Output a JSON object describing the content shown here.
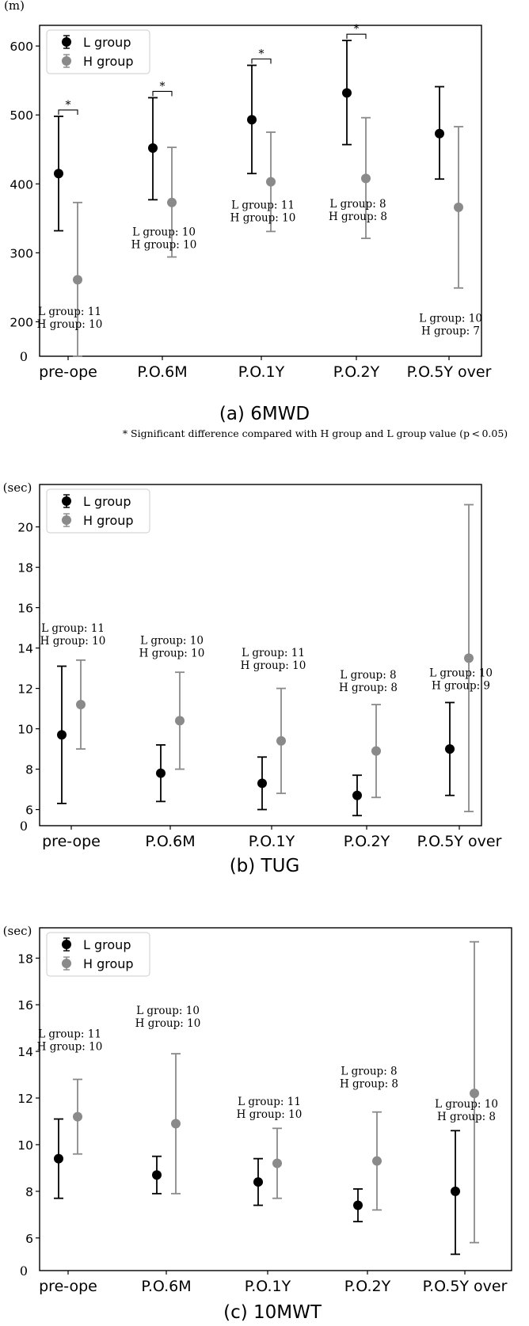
{
  "chart_data": [
    {
      "type": "errorbar",
      "panel": "a",
      "title": "(a) 6MWD",
      "unit_label": "(m)",
      "categories": [
        "pre-ope",
        "P.O.6M",
        "P.O.1Y",
        "P.O.2Y",
        "P.O.5Y over"
      ],
      "ylim": [
        150,
        630
      ],
      "y_ticks": [
        200,
        300,
        400,
        500,
        600
      ],
      "y_zero_label": "0",
      "legend_position": "top-left",
      "series": [
        {
          "name": "L group",
          "color": "#000000",
          "values": [
            415,
            452,
            493,
            532,
            473
          ],
          "lower": [
            332,
            377,
            415,
            457,
            407
          ],
          "upper": [
            498,
            525,
            572,
            608,
            541
          ]
        },
        {
          "name": "H group",
          "color": "#8a8a8a",
          "values": [
            261,
            373,
            403,
            408,
            366
          ],
          "lower": [
            150,
            294,
            331,
            321,
            249
          ],
          "upper": [
            373,
            453,
            475,
            496,
            483
          ]
        }
      ],
      "significance": [
        {
          "category": 0,
          "label": "*"
        },
        {
          "category": 1,
          "label": "*"
        },
        {
          "category": 2,
          "label": "*"
        },
        {
          "category": 3,
          "label": "*"
        }
      ],
      "n_labels": [
        {
          "category": 0,
          "y": 210,
          "lines": [
            "L group: 11",
            "H group: 10"
          ]
        },
        {
          "category": 1,
          "y": 325,
          "lines": [
            "L group: 10",
            "H group: 10"
          ]
        },
        {
          "category": 2,
          "y": 364,
          "lines": [
            "L group: 11",
            "H group: 10"
          ]
        },
        {
          "category": 3,
          "y": 366,
          "lines": [
            "L group: 8",
            "H group: 8"
          ]
        },
        {
          "category": 4,
          "y": 200,
          "lines": [
            "L group: 10",
            "H group: 7"
          ]
        }
      ],
      "footnote": "* Significant difference compared with H group and L group value (p < 0.05)"
    },
    {
      "type": "errorbar",
      "panel": "b",
      "title": "(b) TUG",
      "unit_label": "(sec)",
      "categories": [
        "pre-ope",
        "P.O.6M",
        "P.O.1Y",
        "P.O.2Y",
        "P.O.5Y over"
      ],
      "ylim": [
        5.2,
        22.1
      ],
      "y_ticks": [
        6,
        8,
        10,
        12,
        14,
        16,
        18,
        20
      ],
      "y_zero_label": "0",
      "legend_position": "top-left",
      "series": [
        {
          "name": "L group",
          "color": "#000000",
          "values": [
            9.7,
            7.8,
            7.3,
            6.7,
            9.0
          ],
          "lower": [
            6.3,
            6.4,
            6.0,
            5.7,
            6.7
          ],
          "upper": [
            13.1,
            9.2,
            8.6,
            7.7,
            11.3
          ]
        },
        {
          "name": "H group",
          "color": "#8a8a8a",
          "values": [
            11.2,
            10.4,
            9.4,
            8.9,
            13.5
          ],
          "lower": [
            9.0,
            8.0,
            6.8,
            6.6,
            5.9
          ],
          "upper": [
            13.4,
            12.8,
            12.0,
            11.2,
            21.1
          ]
        }
      ],
      "significance": [],
      "n_labels": [
        {
          "category": 0,
          "y": 14.8,
          "lines": [
            "L group: 11",
            "H group: 10"
          ]
        },
        {
          "category": 1,
          "y": 14.2,
          "lines": [
            "L group: 10",
            "H group: 10"
          ]
        },
        {
          "category": 2,
          "y": 13.6,
          "lines": [
            "L group: 11",
            "H group: 10"
          ]
        },
        {
          "category": 3,
          "y": 12.5,
          "lines": [
            "L group: 8",
            "H group: 8"
          ]
        },
        {
          "category": 4,
          "y": 12.6,
          "lines": [
            "L group: 10",
            "H group: 9"
          ]
        }
      ],
      "footnote": ""
    },
    {
      "type": "errorbar",
      "panel": "c",
      "title": "(c) 10MWT",
      "unit_label": "(sec)",
      "categories": [
        "pre-ope",
        "P.O.6M",
        "P.O.1Y",
        "P.O.2Y",
        "P.O.5Y over"
      ],
      "ylim": [
        4.6,
        19.3
      ],
      "y_ticks": [
        6,
        8,
        10,
        12,
        14,
        16,
        18
      ],
      "y_zero_label": "0",
      "legend_position": "top-left",
      "series": [
        {
          "name": "L group",
          "color": "#000000",
          "values": [
            9.4,
            8.7,
            8.4,
            7.4,
            8.0
          ],
          "lower": [
            7.7,
            7.9,
            7.4,
            6.7,
            5.3
          ],
          "upper": [
            11.1,
            9.5,
            9.4,
            8.1,
            10.6
          ]
        },
        {
          "name": "H group",
          "color": "#8a8a8a",
          "values": [
            11.2,
            10.9,
            9.2,
            9.3,
            12.2
          ],
          "lower": [
            9.6,
            7.9,
            7.7,
            7.2,
            5.8
          ],
          "upper": [
            12.8,
            13.9,
            10.7,
            11.4,
            18.7
          ]
        }
      ],
      "significance": [],
      "n_labels": [
        {
          "category": 0,
          "y": 14.6,
          "lines": [
            "L group: 11",
            "H group: 10"
          ]
        },
        {
          "category": 1,
          "y": 15.6,
          "lines": [
            "L group: 10",
            "H group: 10"
          ]
        },
        {
          "category": 2,
          "y": 11.7,
          "lines": [
            "L group: 11",
            "H group: 10"
          ]
        },
        {
          "category": 3,
          "y": 13.0,
          "lines": [
            "L group: 8",
            "H group: 8"
          ]
        },
        {
          "category": 4,
          "y": 11.6,
          "lines": [
            "L group: 10",
            "H group: 8"
          ]
        }
      ],
      "footnote": ""
    }
  ]
}
